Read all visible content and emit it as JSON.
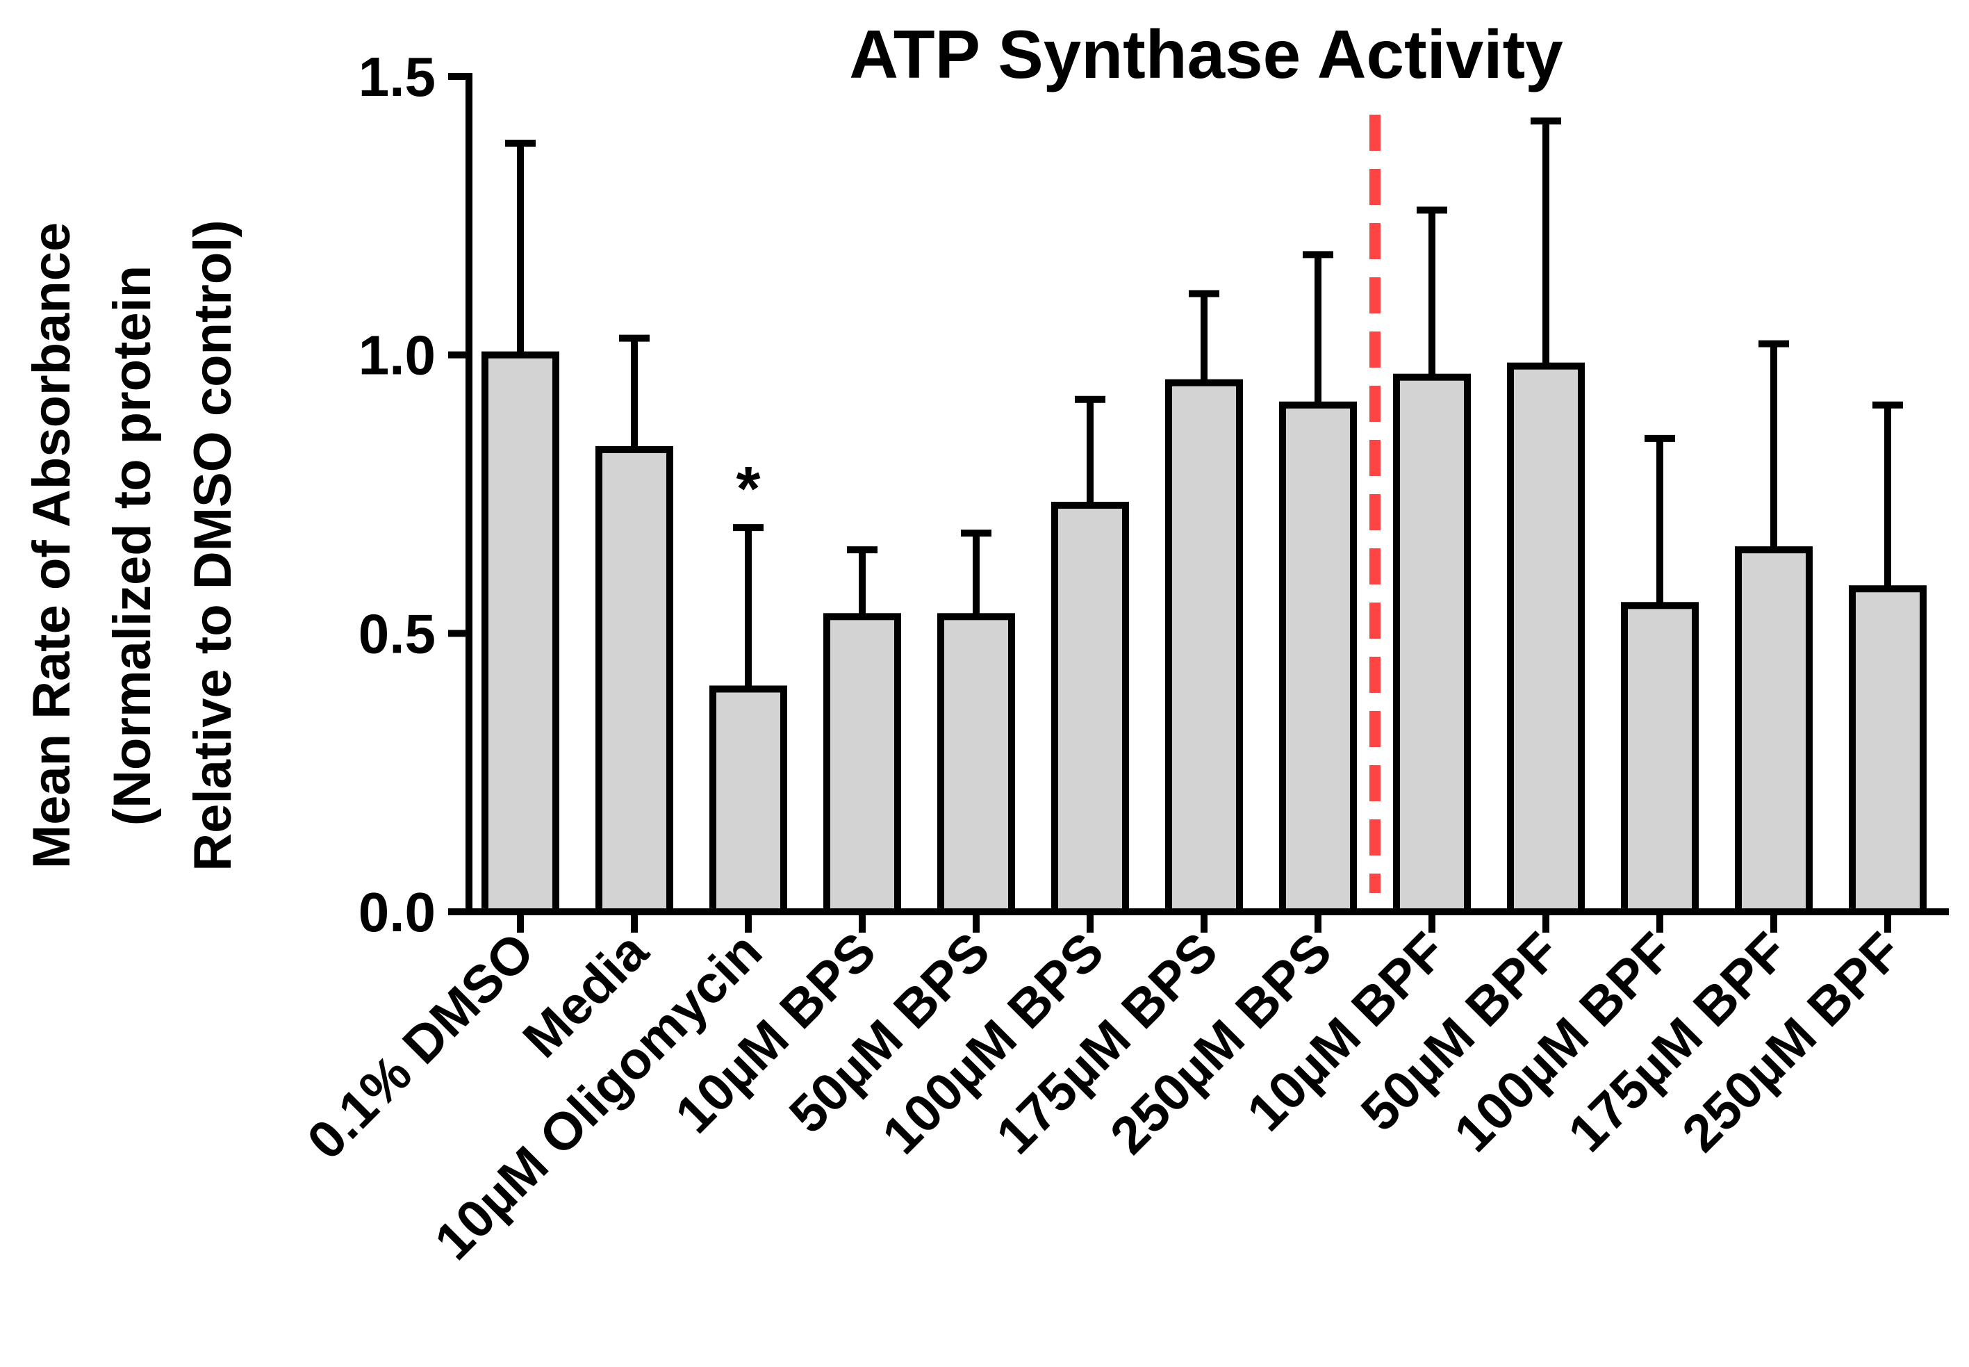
{
  "chart_data": {
    "type": "bar",
    "title": "ATP Synthase Activity",
    "ylabel_lines": [
      "Mean Rate of Absorbance",
      "(Normalized to protein",
      "Relative to DMSO control)"
    ],
    "xlabel": "",
    "ylim": [
      0,
      1.5
    ],
    "yticks": [
      0.0,
      0.5,
      1.0,
      1.5
    ],
    "ytick_labels": [
      "0.0",
      "0.5",
      "1.0",
      "1.5"
    ],
    "categories": [
      "0.1% DMSO",
      "Media",
      "10µM Oligomycin",
      "10µM BPS",
      "50µM BPS",
      "100µM BPS",
      "175µM BPS",
      "250µM BPS",
      "10µM BPF",
      "50µM BPF",
      "100µM BPF",
      "175µM BPF",
      "250µM BPF"
    ],
    "series": [
      {
        "name": "Mean",
        "values": [
          1.0,
          0.83,
          0.4,
          0.53,
          0.53,
          0.73,
          0.95,
          0.91,
          0.96,
          0.98,
          0.55,
          0.65,
          0.58
        ],
        "error_upper": [
          1.38,
          1.03,
          0.69,
          0.65,
          0.68,
          0.92,
          1.11,
          1.18,
          1.26,
          1.42,
          0.85,
          1.02,
          0.91
        ]
      }
    ],
    "annotations": [
      {
        "category": "10µM Oligomycin",
        "text": "*"
      }
    ],
    "separator": {
      "between": [
        "250µM BPS",
        "10µM BPF"
      ],
      "style": "dashed",
      "color": "#ff4444"
    },
    "colors": {
      "bar_fill": "#d3d3d3",
      "bar_stroke": "#000000",
      "axis": "#000000",
      "separator": "#ff4444"
    }
  }
}
